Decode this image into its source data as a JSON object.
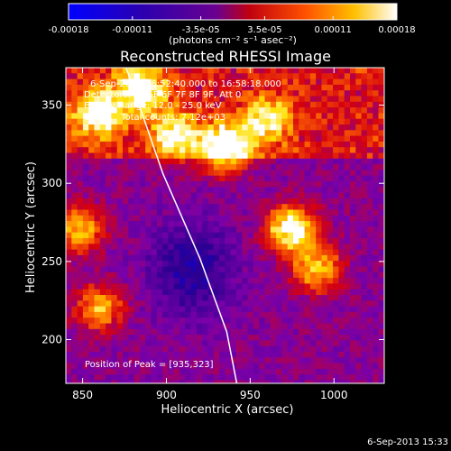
{
  "title": "Reconstructed RHESSI Image",
  "timestamp": "6-Sep-2013 15:33",
  "colorbar": {
    "tick_labels": [
      "-0.00018",
      "-0.00011",
      "-3.5e-05",
      "3.5e-05",
      "0.00011",
      "0.00018"
    ],
    "tick_values": [
      -0.00018,
      -0.00011,
      -3.5e-05,
      3.5e-05,
      0.00011,
      0.00018
    ],
    "range": [
      -0.00018,
      0.00018
    ],
    "unit_label": "(photons cm⁻² s⁻¹ asec⁻²)"
  },
  "annotations": {
    "time_range": "6-Sep-2013 16:52:40.000 to 16:58:18.000",
    "detectors": "Detectors: 3F 5F 6F 7F 8F 9F, Att 0",
    "energy_range": "Energy Range: 12.0 - 25.0 keV",
    "method_counts": "Clean    Total counts: 7.12e+03",
    "peak": "Position of Peak = [935,323]"
  },
  "chart_data": {
    "type": "heatmap",
    "title": "Reconstructed RHESSI Image",
    "xlabel": "Heliocentric X (arcsec)",
    "ylabel": "Heliocentric Y (arcsec)",
    "xlim": [
      840,
      1030
    ],
    "ylim": [
      172,
      374
    ],
    "x_ticks": [
      850,
      900,
      950,
      1000
    ],
    "y_ticks": [
      200,
      250,
      300,
      350
    ],
    "colorscale": [
      "#0000ff",
      "#2a0090",
      "#7a00a8",
      "#d40010",
      "#ff6a00",
      "#ffe000",
      "#ffffff"
    ],
    "peak_position": [
      935,
      323
    ],
    "limb_line": [
      [
        876,
        374
      ],
      [
        898,
        306
      ],
      [
        920,
        252
      ],
      [
        936,
        205
      ],
      [
        942,
        172
      ]
    ],
    "hot_regions": [
      {
        "x": 860,
        "y": 345,
        "level": 0.9
      },
      {
        "x": 885,
        "y": 360,
        "level": 0.85
      },
      {
        "x": 935,
        "y": 323,
        "level": 1.0
      },
      {
        "x": 905,
        "y": 330,
        "level": 0.7
      },
      {
        "x": 960,
        "y": 340,
        "level": 0.65
      },
      {
        "x": 975,
        "y": 270,
        "level": 0.95
      },
      {
        "x": 990,
        "y": 245,
        "level": 0.6
      },
      {
        "x": 848,
        "y": 270,
        "level": 0.6
      },
      {
        "x": 860,
        "y": 220,
        "level": 0.55
      }
    ]
  }
}
